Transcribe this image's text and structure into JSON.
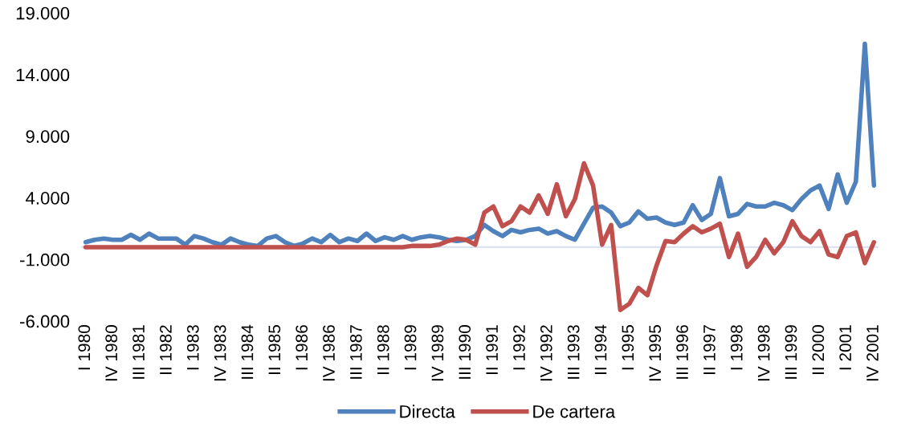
{
  "chart_data": {
    "type": "line",
    "categories": [
      "I 1980",
      null,
      null,
      "IV 1980",
      null,
      null,
      "III 1981",
      null,
      null,
      "II 1982",
      null,
      null,
      "I 1983",
      null,
      null,
      "IV 1983",
      null,
      null,
      "III 1984",
      null,
      null,
      "II 1985",
      null,
      null,
      "I 1986",
      null,
      null,
      "IV 1986",
      null,
      null,
      "III 1987",
      null,
      null,
      "II 1988",
      null,
      null,
      "I 1989",
      null,
      null,
      "IV 1989",
      null,
      null,
      "III 1990",
      null,
      null,
      "II 1991",
      null,
      null,
      "I 1992",
      null,
      null,
      "IV 1992",
      null,
      null,
      "III 1993",
      null,
      null,
      "II 1994",
      null,
      null,
      "I 1995",
      null,
      null,
      "IV 1995",
      null,
      null,
      "III 1996",
      null,
      null,
      "II 1997",
      null,
      null,
      "I 1998",
      null,
      null,
      "IV 1998",
      null,
      null,
      "III 1999",
      null,
      null,
      "II 2000",
      null,
      null,
      "I 2001",
      null,
      null,
      "IV 2001"
    ],
    "series": [
      {
        "name": "Directa",
        "color": "#4f81bd",
        "values": [
          400,
          600,
          700,
          600,
          600,
          1000,
          600,
          1100,
          700,
          700,
          700,
          200,
          900,
          700,
          400,
          200,
          700,
          400,
          200,
          100,
          700,
          900,
          400,
          100,
          300,
          700,
          400,
          1000,
          400,
          700,
          500,
          1100,
          500,
          800,
          600,
          900,
          600,
          800,
          900,
          800,
          600,
          500,
          600,
          900,
          1800,
          1300,
          900,
          1400,
          1200,
          1400,
          1500,
          1100,
          1300,
          900,
          600,
          1900,
          3200,
          3300,
          2800,
          1700,
          2000,
          2900,
          2300,
          2400,
          2000,
          1800,
          2000,
          3400,
          2200,
          2700,
          5600,
          2500,
          2700,
          3500,
          3300,
          3300,
          3600,
          3400,
          3000,
          3900,
          4600,
          5000,
          3100,
          5900,
          3600,
          5300,
          16500,
          5000
        ]
      },
      {
        "name": "De cartera",
        "color": "#c0504d",
        "values": [
          0,
          0,
          0,
          0,
          0,
          0,
          0,
          0,
          0,
          0,
          0,
          0,
          0,
          0,
          0,
          0,
          0,
          0,
          0,
          0,
          0,
          0,
          0,
          0,
          0,
          0,
          0,
          0,
          0,
          0,
          0,
          0,
          0,
          0,
          0,
          0,
          100,
          100,
          100,
          200,
          500,
          700,
          600,
          200,
          2800,
          3300,
          1700,
          2100,
          3300,
          2800,
          4200,
          2700,
          5100,
          2500,
          3900,
          6800,
          5000,
          200,
          1800,
          -5100,
          -4600,
          -3300,
          -3900,
          -1500,
          500,
          400,
          1100,
          1700,
          1200,
          1500,
          1900,
          -800,
          1100,
          -1600,
          -800,
          600,
          -500,
          400,
          2100,
          900,
          400,
          1300,
          -600,
          -800,
          900,
          1200,
          -1300,
          400
        ]
      }
    ],
    "ylim": [
      -6000,
      19000
    ],
    "yticks": [
      {
        "value": -6000,
        "label": "-6.000"
      },
      {
        "value": -1000,
        "label": "-1.000"
      },
      {
        "value": 4000,
        "label": "4.000"
      },
      {
        "value": 9000,
        "label": "9.000"
      },
      {
        "value": 14000,
        "label": "14.000"
      },
      {
        "value": 19000,
        "label": "19.000"
      }
    ],
    "legend": "bottom",
    "grid": false,
    "marker": "none",
    "line_style": "solid"
  }
}
